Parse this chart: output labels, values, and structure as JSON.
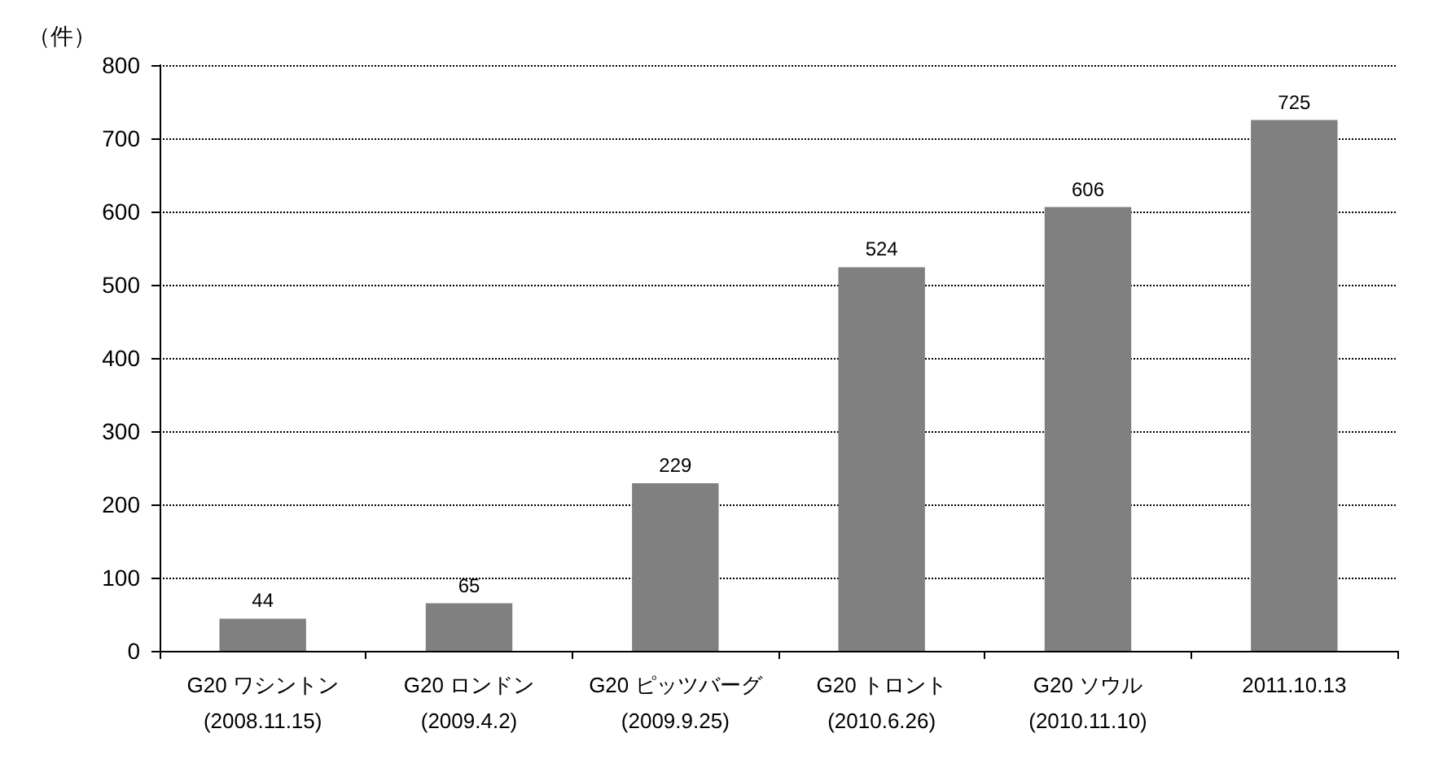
{
  "chart_data": {
    "type": "bar",
    "ylabel": "（件）",
    "categories": [
      "G20 ワシントン\n(2008.11.15)",
      "G20 ロンドン\n(2009.4.2)",
      "G20 ピッツバーグ\n(2009.9.25)",
      "G20 トロント\n(2010.6.26)",
      "G20 ソウル\n(2010.11.10)",
      "2011.10.13"
    ],
    "values": [
      44,
      65,
      229,
      524,
      606,
      725
    ],
    "color": "#808080",
    "ylim": [
      0,
      800
    ],
    "yticks": [
      0,
      100,
      200,
      300,
      400,
      500,
      600,
      700,
      800
    ],
    "grid": "y",
    "data_labels": true
  }
}
